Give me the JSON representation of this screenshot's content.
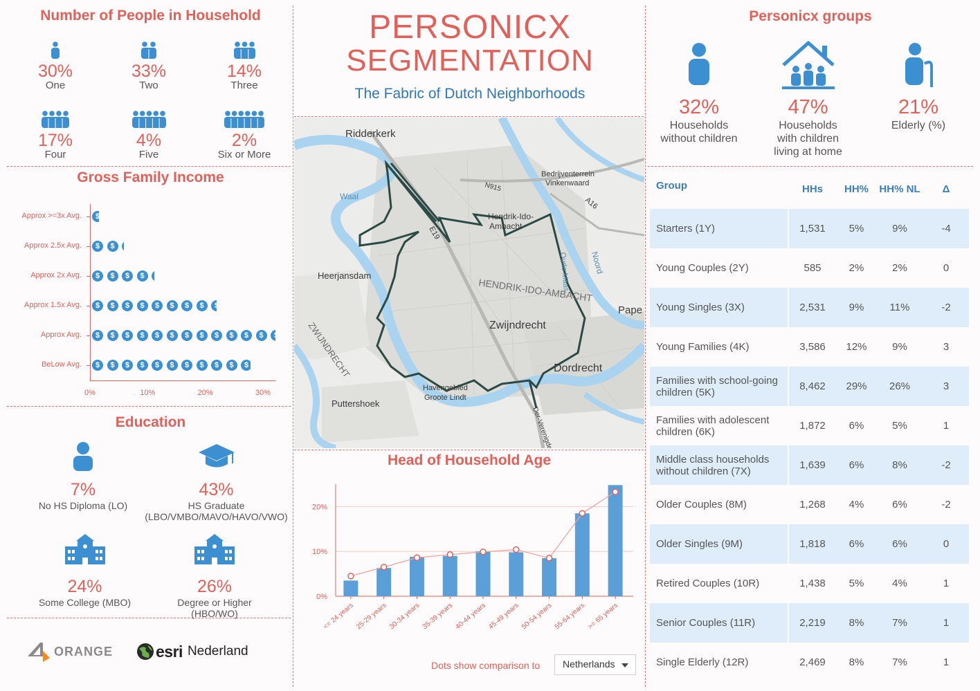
{
  "title": {
    "line1": "PERSONICX",
    "line2": "SEGMENTATION",
    "subtitle": "The Fabric of Dutch Neighborhoods"
  },
  "household": {
    "title": "Number of People in Household",
    "items": [
      {
        "pct": "30%",
        "label": "One",
        "people": 1
      },
      {
        "pct": "33%",
        "label": "Two",
        "people": 2
      },
      {
        "pct": "14%",
        "label": "Three",
        "people": 3
      },
      {
        "pct": "17%",
        "label": "Four",
        "people": 4
      },
      {
        "pct": "4%",
        "label": "Five",
        "people": 5
      },
      {
        "pct": "2%",
        "label": "Six or More",
        "people": 6
      }
    ]
  },
  "income": {
    "title": "Gross Family Income",
    "rows": [
      {
        "label": "Approx >=3x Avg.",
        "value": 1.2
      },
      {
        "label": "Approx 2.5x Avg.",
        "value": 5.5
      },
      {
        "label": "Approx 2x Avg.",
        "value": 10.8
      },
      {
        "label": "Approx 1.5x Avg.",
        "value": 21.6
      },
      {
        "label": "Approx Avg.",
        "value": 31.8
      },
      {
        "label": "BeLow Avg.",
        "value": 27.5
      }
    ],
    "ticks": [
      "0%",
      "10%",
      "20%",
      "30%"
    ]
  },
  "education": {
    "title": "Education",
    "items": [
      {
        "pct": "7%",
        "label": "No HS Diploma (LO)",
        "icon": "person-icon"
      },
      {
        "pct": "43%",
        "label": "HS Graduate\n(LBO/VMBO/MAVO/HAVO/VWO)",
        "icon": "graduation-cap-icon"
      },
      {
        "pct": "24%",
        "label": "Some College (MBO)",
        "icon": "school-building-icon"
      },
      {
        "pct": "26%",
        "label": "Degree or Higher (HBO/WO)",
        "icon": "university-building-icon"
      }
    ]
  },
  "logos": {
    "orange": "ORANGE",
    "esri": "esri",
    "esri_suffix": "Nederland"
  },
  "map": {
    "labels": [
      "Ridderkerk",
      "Bedrijventerrein",
      "Vinkenwaard",
      "Waal",
      "Hendrik-Ido-",
      "Ambacht",
      "Heerjansdam",
      "HENDRIK-IDO-AMBACHT",
      "Pape",
      "Zwijndrecht",
      "Dordrecht",
      "ZWIJNDRECHT",
      "Havengebied",
      "Groote Lindt",
      "Puttershoek",
      "N915",
      "A16",
      "E19",
      "Noord",
      "Oude Maas",
      "Der-Verenigde-Nattes"
    ]
  },
  "age": {
    "title": "Head of Household Age",
    "note": "Dots show comparison to",
    "dropdown": "Netherlands",
    "yticks": [
      "0%",
      "10%",
      "20%"
    ]
  },
  "groups": {
    "title": "Personicx groups",
    "stats": [
      {
        "pct": "32%",
        "label": "Households\nwithout children",
        "icon": "person-icon"
      },
      {
        "pct": "47%",
        "label": "Households\nwith children\nliving at home",
        "icon": "family-house-icon"
      },
      {
        "pct": "21%",
        "label": "Elderly (%)",
        "icon": "elderly-person-cane-icon"
      }
    ]
  },
  "table": {
    "headers": [
      "Group",
      "HHs",
      "HH%",
      "HH% NL",
      "Δ"
    ],
    "rows": [
      [
        "Starters (1Y)",
        "1,531",
        "5%",
        "9%",
        "-4"
      ],
      [
        "Young Couples (2Y)",
        "585",
        "2%",
        "2%",
        "0"
      ],
      [
        "Young Singles (3X)",
        "2,531",
        "9%",
        "11%",
        "-2"
      ],
      [
        "Young Families (4K)",
        "3,586",
        "12%",
        "9%",
        "3"
      ],
      [
        "Families with school-going children (5K)",
        "8,462",
        "29%",
        "26%",
        "3"
      ],
      [
        "Families with adolescent children (6K)",
        "1,872",
        "6%",
        "5%",
        "1"
      ],
      [
        "Middle class households without children (7X)",
        "1,639",
        "6%",
        "8%",
        "-2"
      ],
      [
        "Older Couples (8M)",
        "1,268",
        "4%",
        "6%",
        "-2"
      ],
      [
        "Older Singles (9M)",
        "1,818",
        "6%",
        "6%",
        "0"
      ],
      [
        "Retired Couples (10R)",
        "1,438",
        "5%",
        "4%",
        "1"
      ],
      [
        "Senior Couples (11R)",
        "2,219",
        "8%",
        "7%",
        "1"
      ],
      [
        "Single Elderly (12R)",
        "2,469",
        "8%",
        "7%",
        "1"
      ]
    ]
  },
  "chart_data": [
    {
      "type": "bar",
      "title": "Gross Family Income",
      "categories": [
        "Approx >=3x Avg.",
        "Approx 2.5x Avg.",
        "Approx 2x Avg.",
        "Approx 1.5x Avg.",
        "Approx Avg.",
        "BeLow Avg."
      ],
      "values": [
        1.2,
        5.5,
        10.8,
        21.6,
        31.8,
        27.5
      ],
      "orientation": "horizontal",
      "xlim": [
        0,
        32
      ],
      "xticks": [
        "0%",
        "10%",
        "20%",
        "30%"
      ]
    },
    {
      "type": "bar",
      "title": "Head of Household Age",
      "categories": [
        "<= 24 years",
        "25-29 years",
        "30-34 years",
        "35-39 years",
        "40-44 years",
        "45-49 years",
        "50-54 years",
        "55-64 years",
        ">= 65 years"
      ],
      "series": [
        {
          "values": [
            3.5,
            6.3,
            8.8,
            9.0,
            10.0,
            9.8,
            8.5,
            18.5,
            24.8
          ],
          "color": "#5a9fd8"
        },
        {
          "values": [
            4.5,
            6.5,
            8.6,
            9.3,
            9.9,
            10.4,
            8.5,
            18.5,
            23.3
          ],
          "color": "#e06159"
        }
      ],
      "ylim": [
        0,
        25
      ],
      "yticks": [
        "0%",
        "10%",
        "20%"
      ],
      "grid": true
    }
  ],
  "colors": {
    "accent": "#e06159",
    "blue": "#3c8fd0",
    "rowfill": "#deedf9"
  }
}
